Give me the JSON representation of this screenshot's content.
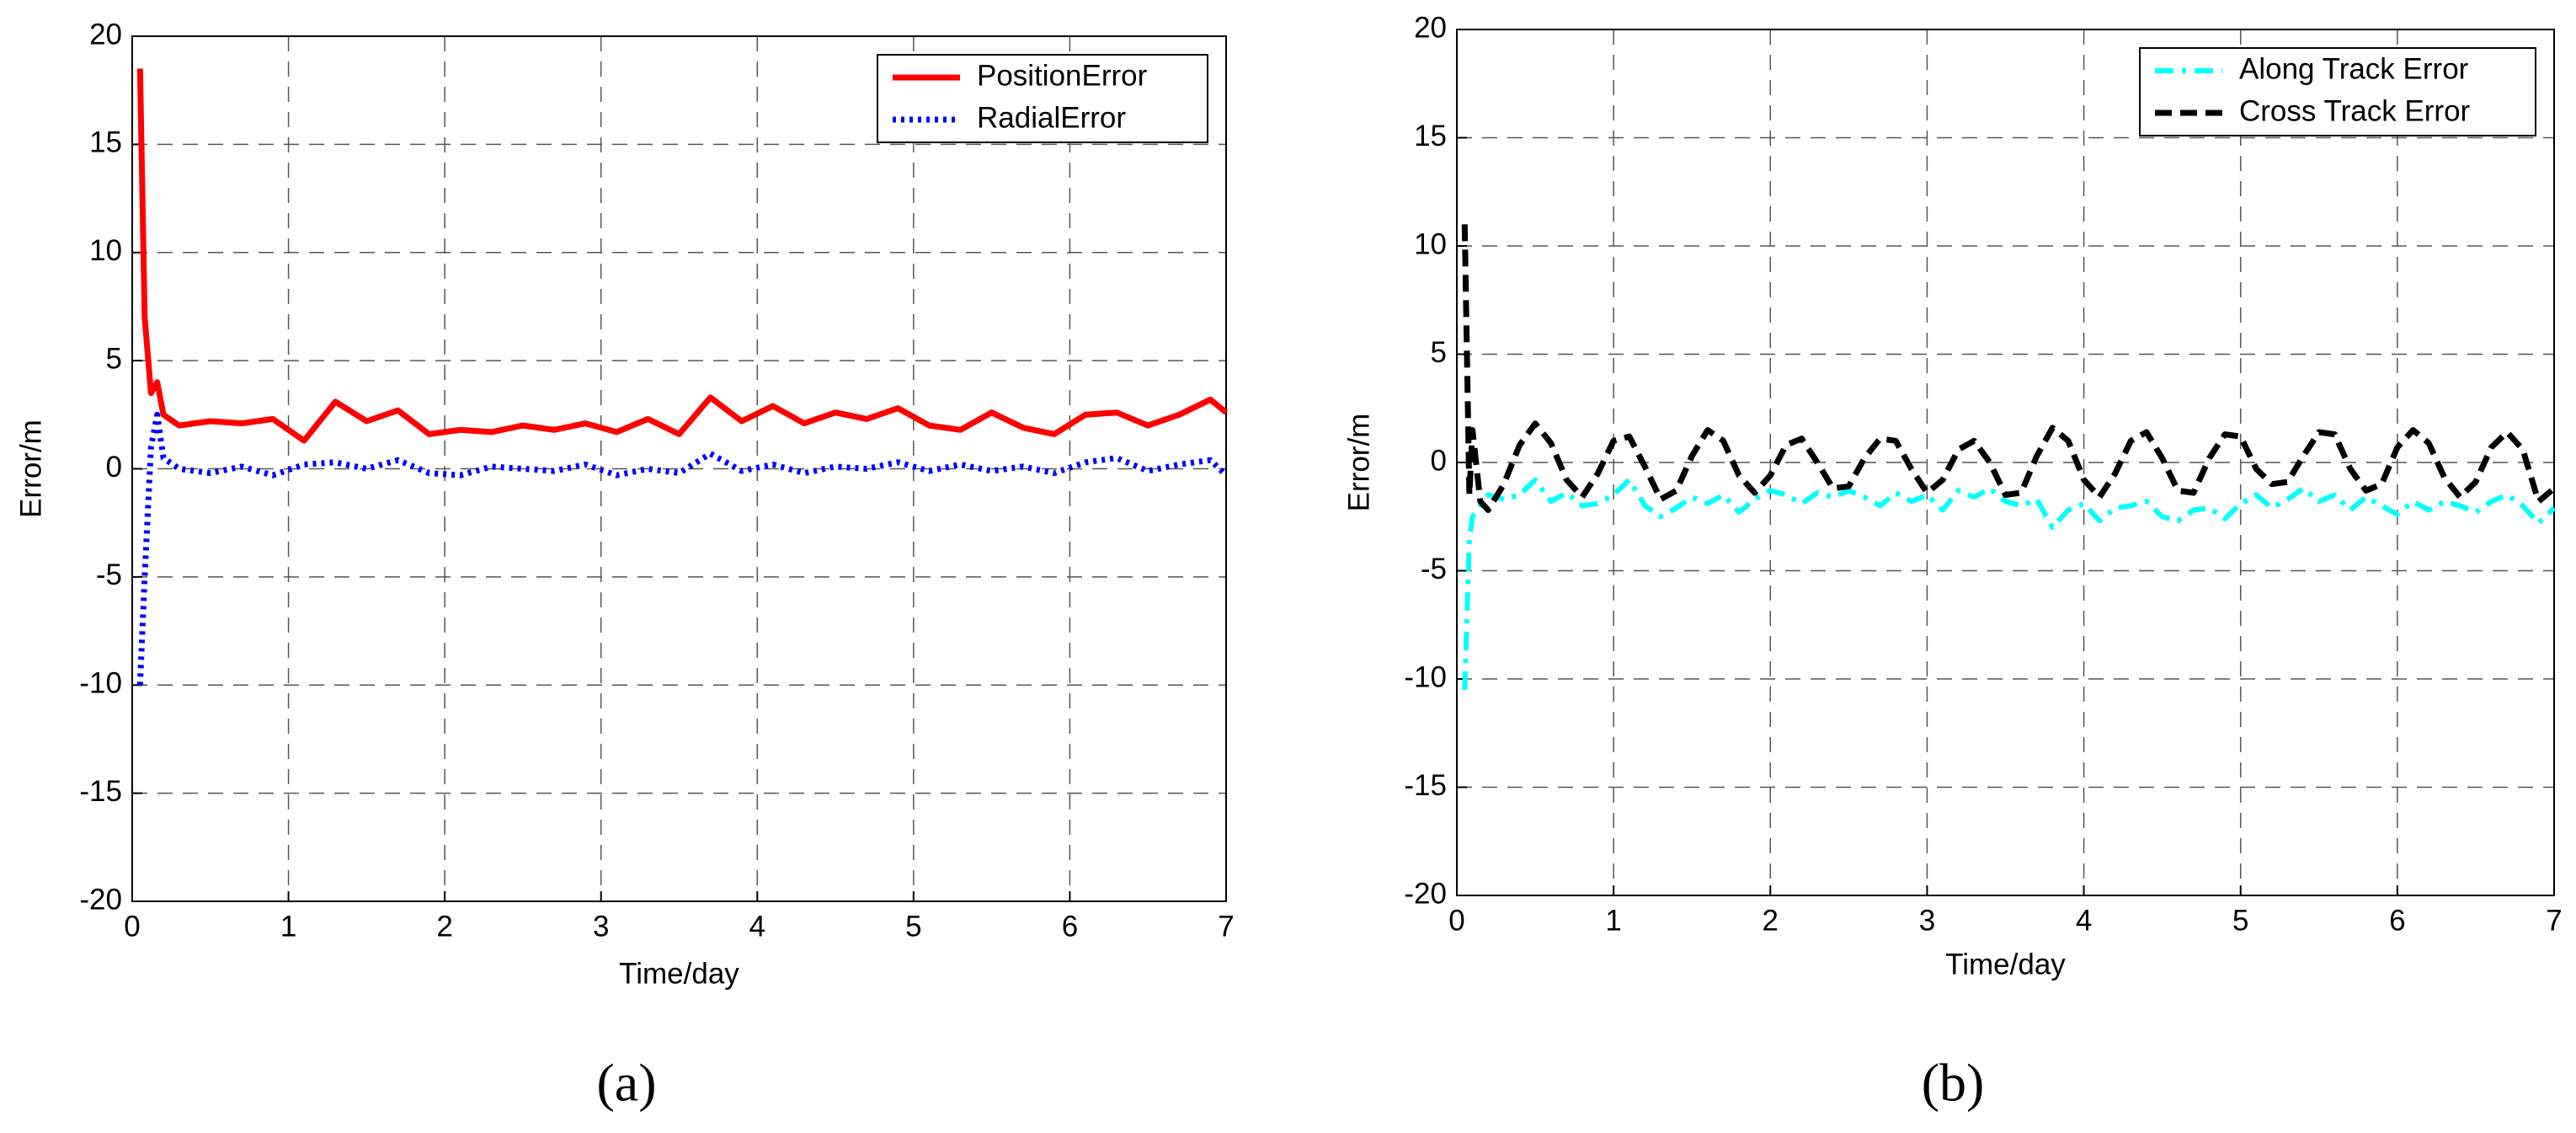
{
  "chart_data": [
    {
      "type": "line",
      "panel_label": "(a)",
      "xlabel": "Time/day",
      "ylabel": "Error/m",
      "xlim": [
        0,
        7
      ],
      "ylim": [
        -20,
        20
      ],
      "xticks": [
        0,
        1,
        2,
        3,
        4,
        5,
        6,
        7
      ],
      "yticks": [
        -20,
        -15,
        -10,
        -5,
        0,
        5,
        10,
        15,
        20
      ],
      "grid": true,
      "legend": "upper-right",
      "x": [
        0.05,
        0.08,
        0.12,
        0.16,
        0.2,
        0.3,
        0.5,
        0.7,
        0.9,
        1.1,
        1.3,
        1.5,
        1.7,
        1.9,
        2.1,
        2.3,
        2.5,
        2.7,
        2.9,
        3.1,
        3.3,
        3.5,
        3.7,
        3.9,
        4.1,
        4.3,
        4.5,
        4.7,
        4.9,
        5.1,
        5.3,
        5.5,
        5.7,
        5.9,
        6.1,
        6.3,
        6.5,
        6.7,
        6.9,
        7.0
      ],
      "series": [
        {
          "name": "PositionError",
          "color": "#ff0000",
          "style": "solid",
          "values": [
            18.5,
            7,
            3.5,
            4,
            2.5,
            2,
            2.2,
            2.1,
            2.3,
            1.3,
            3.1,
            2.2,
            2.7,
            1.6,
            1.8,
            1.7,
            2.0,
            1.8,
            2.1,
            1.7,
            2.3,
            1.6,
            3.3,
            2.2,
            2.9,
            2.1,
            2.6,
            2.3,
            2.8,
            2.0,
            1.8,
            2.6,
            1.9,
            1.6,
            2.5,
            2.6,
            2.0,
            2.5,
            3.2,
            2.6
          ]
        },
        {
          "name": "RadialError",
          "color": "#0000ff",
          "style": "dotted",
          "values": [
            -10,
            -5,
            1,
            2.5,
            0.5,
            0,
            -0.2,
            0.1,
            -0.3,
            0.2,
            0.3,
            0,
            0.4,
            -0.2,
            -0.3,
            0.1,
            0,
            -0.1,
            0.2,
            -0.3,
            0,
            -0.2,
            0.7,
            -0.1,
            0.2,
            -0.2,
            0.1,
            0,
            0.3,
            -0.1,
            0.2,
            -0.1,
            0.1,
            -0.2,
            0.3,
            0.5,
            -0.1,
            0.2,
            0.4,
            -0.3
          ]
        }
      ]
    },
    {
      "type": "line",
      "panel_label": "(b)",
      "xlabel": "Time/day",
      "ylabel": "Error/m",
      "xlim": [
        0,
        7
      ],
      "ylim": [
        -20,
        20
      ],
      "xticks": [
        0,
        1,
        2,
        3,
        4,
        5,
        6,
        7
      ],
      "yticks": [
        -20,
        -15,
        -10,
        -5,
        0,
        5,
        10,
        15,
        20
      ],
      "grid": true,
      "legend": "upper-right",
      "x": [
        0.05,
        0.08,
        0.1,
        0.15,
        0.2,
        0.3,
        0.4,
        0.5,
        0.6,
        0.7,
        0.8,
        0.9,
        1.0,
        1.1,
        1.2,
        1.3,
        1.4,
        1.5,
        1.6,
        1.7,
        1.8,
        1.9,
        2.0,
        2.1,
        2.2,
        2.3,
        2.4,
        2.5,
        2.6,
        2.7,
        2.8,
        2.9,
        3.0,
        3.1,
        3.2,
        3.3,
        3.4,
        3.5,
        3.6,
        3.7,
        3.8,
        3.9,
        4.0,
        4.1,
        4.2,
        4.3,
        4.4,
        4.5,
        4.6,
        4.7,
        4.8,
        4.9,
        5.0,
        5.1,
        5.2,
        5.3,
        5.4,
        5.5,
        5.6,
        5.7,
        5.8,
        5.9,
        6.0,
        6.1,
        6.2,
        6.3,
        6.4,
        6.5,
        6.6,
        6.7,
        6.8,
        6.9,
        7.0
      ],
      "series": [
        {
          "name": "Along Track Error",
          "color": "#00ffff",
          "style": "dashdot",
          "values": [
            -10.5,
            -3.5,
            -2.5,
            -2,
            -1.5,
            -1.7,
            -1.5,
            -0.8,
            -1.8,
            -1.4,
            -2.0,
            -1.9,
            -1.5,
            -0.8,
            -2.0,
            -2.5,
            -2.1,
            -1.6,
            -1.9,
            -1.5,
            -2.3,
            -1.7,
            -1.3,
            -1.5,
            -1.9,
            -1.4,
            -1.6,
            -1.3,
            -1.6,
            -2.0,
            -1.4,
            -1.8,
            -1.5,
            -2.2,
            -1.3,
            -1.6,
            -1.2,
            -1.8,
            -2.0,
            -1.7,
            -3.0,
            -2.2,
            -1.9,
            -2.7,
            -2.1,
            -2.0,
            -1.8,
            -2.5,
            -2.7,
            -2.2,
            -2.1,
            -2.6,
            -1.9,
            -1.5,
            -2.1,
            -1.7,
            -1.2,
            -1.8,
            -1.5,
            -2.2,
            -1.6,
            -2.0,
            -2.4,
            -1.8,
            -2.2,
            -1.8,
            -2.0,
            -2.3,
            -1.8,
            -1.5,
            -2.0,
            -2.8,
            -2.1
          ]
        },
        {
          "name": "Cross Track Error",
          "color": "#000000",
          "style": "dashed",
          "values": [
            11,
            -1.5,
            1.5,
            -1.8,
            -2.2,
            -1.0,
            0.8,
            1.8,
            0.9,
            -0.8,
            -1.6,
            -0.5,
            1.0,
            1.2,
            -0.2,
            -1.7,
            -1.3,
            0.3,
            1.5,
            1.0,
            -0.6,
            -1.4,
            -0.6,
            0.8,
            1.1,
            0.0,
            -1.2,
            -1.1,
            0.2,
            1.1,
            1.0,
            -0.3,
            -1.4,
            -0.8,
            0.6,
            1.0,
            0.0,
            -1.5,
            -1.4,
            0.3,
            1.6,
            1.0,
            -0.8,
            -1.6,
            -0.5,
            1.0,
            1.4,
            0.2,
            -1.3,
            -1.4,
            0.2,
            1.3,
            1.2,
            -0.3,
            -1.0,
            -0.9,
            0.3,
            1.4,
            1.3,
            -0.3,
            -1.3,
            -1.0,
            0.7,
            1.5,
            0.9,
            -0.7,
            -1.6,
            -0.9,
            0.7,
            1.4,
            0.6,
            -1.8,
            -1.2
          ]
        }
      ]
    }
  ]
}
